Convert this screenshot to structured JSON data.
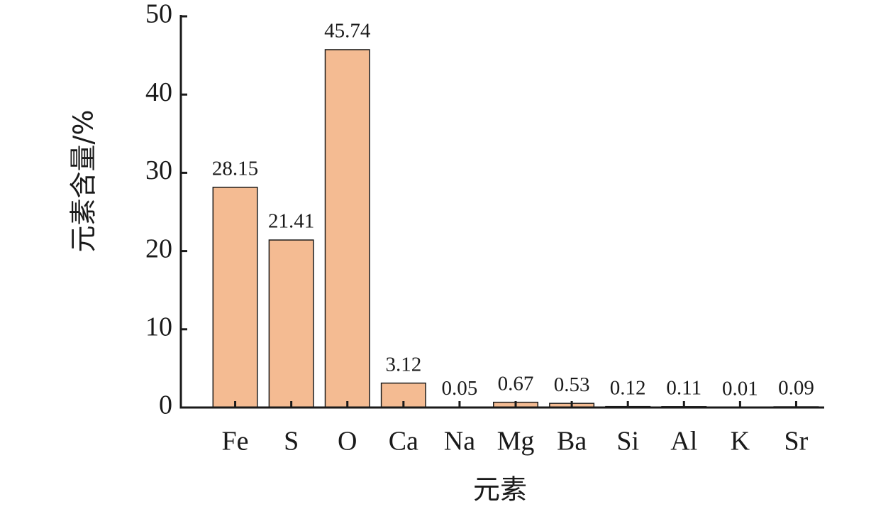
{
  "chart_data": {
    "type": "bar",
    "x_label": "元素",
    "y_label": "元素含量/%",
    "categories": [
      "Fe",
      "S",
      "O",
      "Ca",
      "Na",
      "Mg",
      "Ba",
      "Si",
      "Al",
      "K",
      "Sr"
    ],
    "values": [
      28.15,
      21.41,
      45.74,
      3.12,
      0.05,
      0.67,
      0.53,
      0.12,
      0.11,
      0.01,
      0.09
    ],
    "color": "#f4bb92",
    "ylim": [
      0,
      50
    ],
    "yticks": [
      0,
      10,
      20,
      30,
      40,
      50
    ],
    "grid": false
  }
}
